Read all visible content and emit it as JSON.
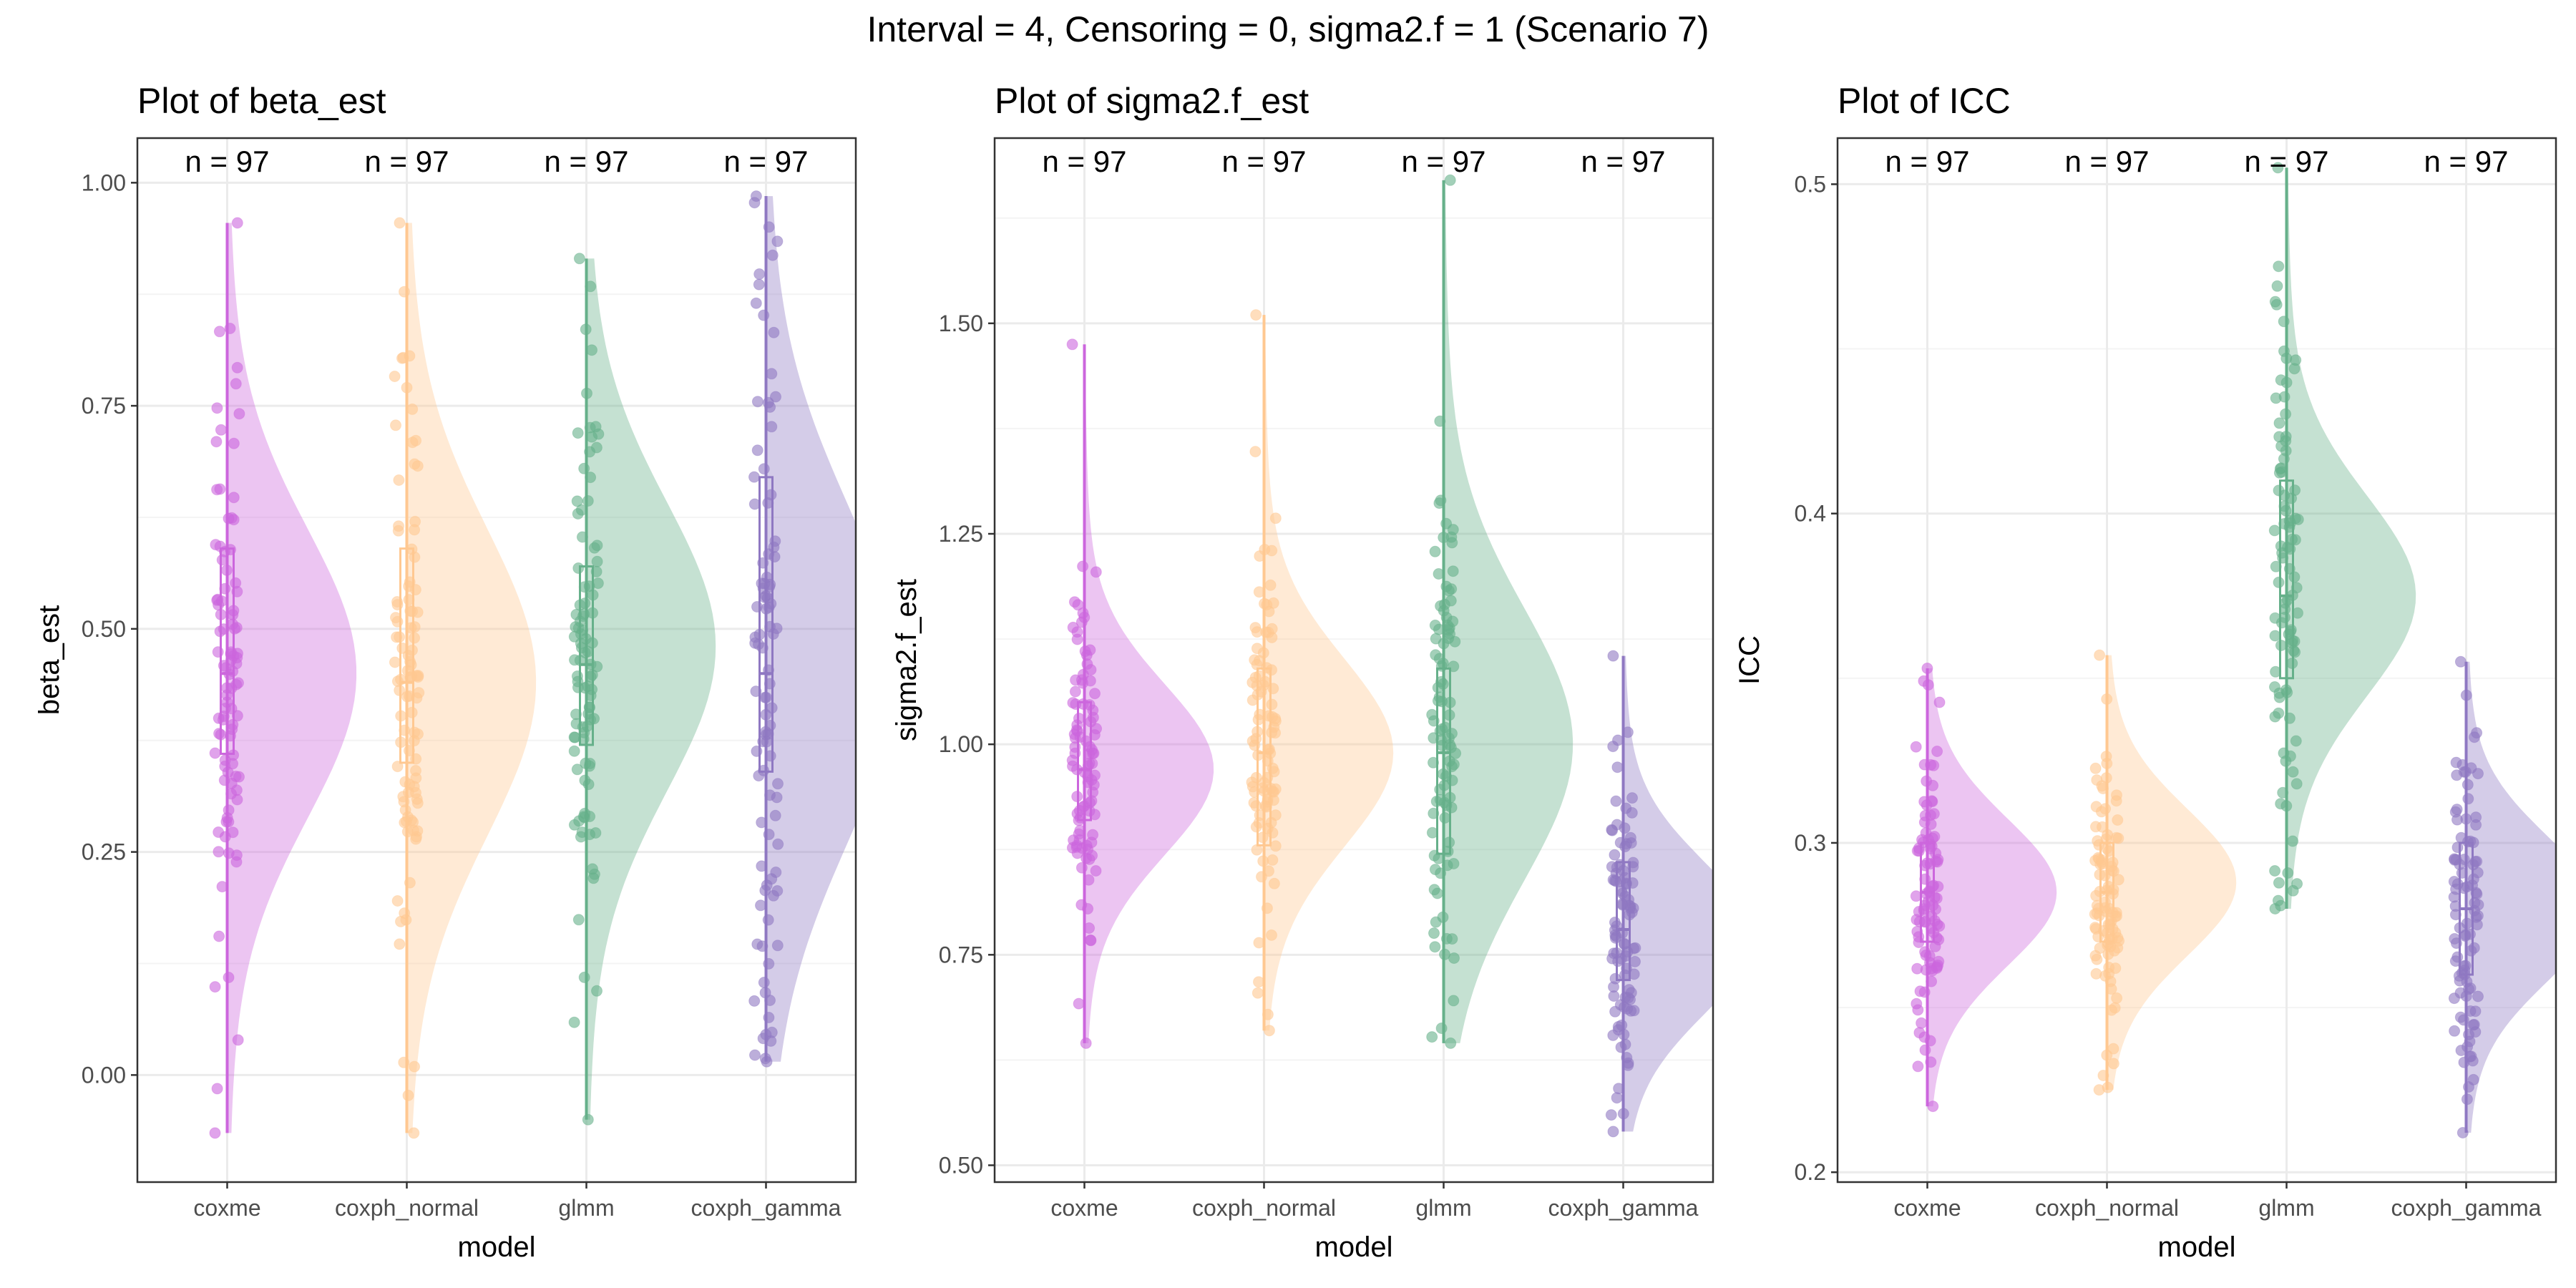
{
  "suptitle": "Interval = 4, Censoring = 0, sigma2.f = 1 (Scenario 7)",
  "colors": {
    "coxme": "#CC66DD",
    "coxph_normal": "#FFC891",
    "glmm": "#66B08A",
    "coxph_gamma": "#8F78C2",
    "grid_major": "#EBEBEB",
    "grid_minor": "#F4F4F4",
    "panel_border": "#333333",
    "tick_text": "#4D4D4D"
  },
  "chart_data": [
    {
      "type": "raincloud",
      "title": "Plot of beta_est",
      "xlabel": "model",
      "ylabel": "beta_est",
      "categories": [
        "coxme",
        "coxph_normal",
        "glmm",
        "coxph_gamma"
      ],
      "ylim": [
        -0.12,
        1.05
      ],
      "yticks": [
        0.0,
        0.25,
        0.5,
        0.75,
        1.0
      ],
      "ytick_labels": [
        "0.00",
        "0.25",
        "0.50",
        "0.75",
        "1.00"
      ],
      "n_labels": [
        "n = 97",
        "n = 97",
        "n = 97",
        "n = 97"
      ],
      "series": [
        {
          "model": "coxme",
          "min": -0.065,
          "q1": 0.36,
          "median": 0.45,
          "q3": 0.59,
          "max": 0.955,
          "density_peak": 0.45,
          "density_sd": 0.16
        },
        {
          "model": "coxph_normal",
          "min": -0.065,
          "q1": 0.35,
          "median": 0.44,
          "q3": 0.59,
          "max": 0.955,
          "density_peak": 0.44,
          "density_sd": 0.17
        },
        {
          "model": "glmm",
          "min": -0.05,
          "q1": 0.37,
          "median": 0.46,
          "q3": 0.57,
          "max": 0.915,
          "density_peak": 0.48,
          "density_sd": 0.16
        },
        {
          "model": "coxph_gamma",
          "min": 0.015,
          "q1": 0.34,
          "median": 0.45,
          "q3": 0.67,
          "max": 0.985,
          "density_peak": 0.45,
          "density_sd": 0.19
        }
      ]
    },
    {
      "type": "raincloud",
      "title": "Plot of sigma2.f_est",
      "xlabel": "model",
      "ylabel": "sigma2.f_est",
      "categories": [
        "coxme",
        "coxph_normal",
        "glmm",
        "coxph_gamma"
      ],
      "ylim": [
        0.48,
        1.72
      ],
      "yticks": [
        0.5,
        0.75,
        1.0,
        1.25,
        1.5
      ],
      "ytick_labels": [
        "0.50",
        "0.75",
        "1.00",
        "1.25",
        "1.50"
      ],
      "n_labels": [
        "n = 97",
        "n = 97",
        "n = 97",
        "n = 97"
      ],
      "series": [
        {
          "model": "coxme",
          "min": 0.645,
          "q1": 0.91,
          "median": 0.97,
          "q3": 1.05,
          "max": 1.475,
          "density_peak": 0.97,
          "density_sd": 0.1
        },
        {
          "model": "coxph_normal",
          "min": 0.66,
          "q1": 0.88,
          "median": 0.99,
          "q3": 1.09,
          "max": 1.51,
          "density_peak": 0.99,
          "density_sd": 0.11
        },
        {
          "model": "glmm",
          "min": 0.645,
          "q1": 0.87,
          "median": 0.99,
          "q3": 1.09,
          "max": 1.67,
          "density_peak": 1.0,
          "density_sd": 0.16
        },
        {
          "model": "coxph_gamma",
          "min": 0.54,
          "q1": 0.72,
          "median": 0.78,
          "q3": 0.86,
          "max": 1.105,
          "density_peak": 0.77,
          "density_sd": 0.09
        }
      ]
    },
    {
      "type": "raincloud",
      "title": "Plot of ICC",
      "xlabel": "model",
      "ylabel": "ICC",
      "categories": [
        "coxme",
        "coxph_normal",
        "glmm",
        "coxph_gamma"
      ],
      "ylim": [
        0.197,
        0.514
      ],
      "yticks": [
        0.2,
        0.3,
        0.4,
        0.5
      ],
      "ytick_labels": [
        "0.2",
        "0.3",
        "0.4",
        "0.5"
      ],
      "n_labels": [
        "n = 97",
        "n = 97",
        "n = 97",
        "n = 97"
      ],
      "series": [
        {
          "model": "coxme",
          "min": 0.22,
          "q1": 0.27,
          "median": 0.285,
          "q3": 0.3,
          "max": 0.353,
          "density_peak": 0.285,
          "density_sd": 0.022
        },
        {
          "model": "coxph_normal",
          "min": 0.225,
          "q1": 0.27,
          "median": 0.285,
          "q3": 0.3,
          "max": 0.357,
          "density_peak": 0.288,
          "density_sd": 0.022
        },
        {
          "model": "glmm",
          "min": 0.28,
          "q1": 0.35,
          "median": 0.375,
          "q3": 0.41,
          "max": 0.505,
          "density_peak": 0.375,
          "density_sd": 0.03
        },
        {
          "model": "coxph_gamma",
          "min": 0.212,
          "q1": 0.26,
          "median": 0.28,
          "q3": 0.3,
          "max": 0.355,
          "density_peak": 0.28,
          "density_sd": 0.022
        }
      ]
    }
  ]
}
